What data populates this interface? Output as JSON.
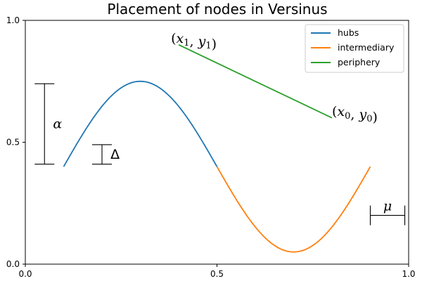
{
  "chart_data": {
    "type": "line",
    "title": "Placement of nodes in Versinus",
    "xlabel": "",
    "ylabel": "",
    "xlim": [
      0,
      1
    ],
    "ylim": [
      0,
      1
    ],
    "grid": false,
    "legend_position": "top-right",
    "xticks": [
      0.0,
      0.5,
      1.0
    ],
    "yticks": [
      0.0,
      0.5,
      1.0
    ],
    "xtick_labels": [
      "0.0",
      "0.5",
      "1.0"
    ],
    "ytick_labels": [
      "0.0",
      "0.5",
      "1.0"
    ],
    "series": [
      {
        "name": "hubs",
        "color": "#1f77b4",
        "x": [
          0.1,
          0.15,
          0.2,
          0.25,
          0.3,
          0.35,
          0.4,
          0.45,
          0.5
        ],
        "y": [
          0.4,
          0.527,
          0.644,
          0.721,
          0.75,
          0.721,
          0.644,
          0.527,
          0.4
        ]
      },
      {
        "name": "intermediary",
        "color": "#ff7f0e",
        "x": [
          0.5,
          0.55,
          0.6,
          0.65,
          0.7,
          0.75,
          0.8,
          0.85,
          0.9
        ],
        "y": [
          0.4,
          0.259,
          0.144,
          0.074,
          0.05,
          0.074,
          0.144,
          0.259,
          0.4
        ]
      },
      {
        "name": "periphery",
        "color": "#2ca02c",
        "x": [
          0.4,
          0.8
        ],
        "y": [
          0.9,
          0.6
        ]
      }
    ],
    "annotations": [
      {
        "name": "alpha",
        "symbol": "α",
        "x": 0.05,
        "y_range": [
          0.41,
          0.74
        ],
        "label_x": 0.065,
        "label_y": 0.575
      },
      {
        "name": "delta",
        "symbol": "Δ",
        "x": 0.2,
        "y_range": [
          0.41,
          0.49
        ],
        "label_x": 0.215,
        "label_y": 0.45
      },
      {
        "name": "mu",
        "symbol": "μ",
        "y": 0.2,
        "x_range": [
          0.9,
          0.99
        ],
        "label_x": 0.945,
        "label_y": 0.235
      },
      {
        "name": "point-x1-y1",
        "base": "x",
        "sub": "1",
        "base2": "y",
        "sub2": "1",
        "x": 0.38,
        "y": 0.925
      },
      {
        "name": "point-x0-y0",
        "base": "x",
        "sub": "0",
        "base2": "y",
        "sub2": "0",
        "x": 0.8,
        "y": 0.625
      }
    ]
  }
}
